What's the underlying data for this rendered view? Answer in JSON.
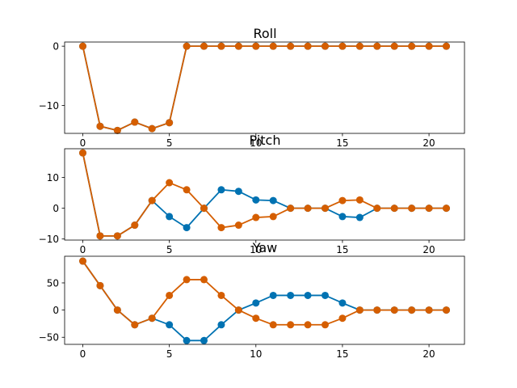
{
  "chart_data": [
    {
      "type": "line",
      "title": "Roll",
      "xlabel": "",
      "ylabel": "",
      "xlim": [
        -1.05,
        22.05
      ],
      "ylim": [
        -14.7,
        0.7
      ],
      "xticks": [
        0,
        5,
        10,
        15,
        20
      ],
      "yticks": [
        0,
        -10
      ],
      "grid": false,
      "x": [
        0,
        1,
        2,
        3,
        4,
        5,
        6,
        7,
        8,
        9,
        10,
        11,
        12,
        13,
        14,
        15,
        16,
        17,
        18,
        19,
        20,
        21
      ],
      "series": [
        {
          "color": "#0072b2",
          "values": [
            0,
            -13.5,
            -14.2,
            -12.8,
            -13.9,
            -12.9,
            0,
            0,
            0,
            0,
            0,
            0,
            0,
            0,
            0,
            0,
            0,
            0,
            0,
            0,
            0,
            0
          ]
        },
        {
          "color": "#d55e00",
          "values": [
            0,
            -13.5,
            -14.2,
            -12.8,
            -13.9,
            -12.9,
            0,
            0,
            0,
            0,
            0,
            0,
            0,
            0,
            0,
            0,
            0,
            0,
            0,
            0,
            0,
            0
          ]
        }
      ]
    },
    {
      "type": "line",
      "title": "Pitch",
      "xlabel": "",
      "ylabel": "",
      "xlim": [
        -1.05,
        22.05
      ],
      "ylim": [
        -10.35,
        19.35
      ],
      "xticks": [
        0,
        5,
        10,
        15,
        20
      ],
      "yticks": [
        10,
        0,
        -10
      ],
      "grid": false,
      "x": [
        0,
        1,
        2,
        3,
        4,
        5,
        6,
        7,
        8,
        9,
        10,
        11,
        12,
        13,
        14,
        15,
        16,
        17,
        18,
        19,
        20,
        21
      ],
      "series": [
        {
          "color": "#0072b2",
          "values": [
            18,
            -9,
            -9,
            -5.5,
            2.5,
            -2.7,
            -6.3,
            0,
            6,
            5.5,
            2.7,
            2.5,
            0,
            0,
            0,
            -2.7,
            -3,
            0,
            0,
            0,
            0,
            0
          ]
        },
        {
          "color": "#d55e00",
          "values": [
            18,
            -9,
            -9,
            -5.5,
            2.5,
            8.3,
            6,
            0,
            -6.3,
            -5.5,
            -3,
            -2.7,
            0,
            0,
            0,
            2.5,
            2.7,
            0,
            0,
            0,
            0,
            0
          ]
        }
      ]
    },
    {
      "type": "line",
      "title": "Yaw",
      "xlabel": "",
      "ylabel": "",
      "xlim": [
        -1.05,
        22.05
      ],
      "ylim": [
        -63,
        99
      ],
      "xticks": [
        0,
        5,
        10,
        15,
        20
      ],
      "yticks": [
        50,
        0,
        -50
      ],
      "grid": false,
      "x": [
        0,
        1,
        2,
        3,
        4,
        5,
        6,
        7,
        8,
        9,
        10,
        11,
        12,
        13,
        14,
        15,
        16,
        17,
        18,
        19,
        20,
        21
      ],
      "series": [
        {
          "color": "#0072b2",
          "values": [
            90,
            45,
            0,
            -27,
            -15,
            -27,
            -56,
            -56,
            -27,
            0,
            13,
            27,
            27,
            27,
            27,
            13,
            0,
            0,
            0,
            0,
            0,
            0
          ]
        },
        {
          "color": "#d55e00",
          "values": [
            90,
            45,
            0,
            -27,
            -15,
            27,
            56,
            56,
            27,
            0,
            -15,
            -27,
            -27,
            -27,
            -27,
            -15,
            0,
            0,
            0,
            0,
            0,
            0
          ]
        }
      ]
    }
  ]
}
